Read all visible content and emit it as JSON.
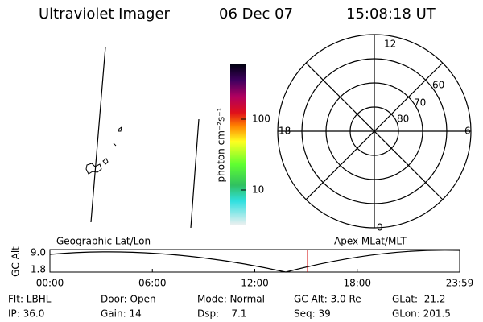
{
  "header": {
    "instrument": "Ultraviolet Imager",
    "date": "06 Dec 07",
    "time": "15:08:18 UT"
  },
  "colorbar": {
    "label": "photon cm⁻²s⁻¹",
    "ticks": [
      "100",
      "10"
    ]
  },
  "polar": {
    "mlt_labels": [
      "12",
      "6",
      "0",
      "18"
    ],
    "lat_labels": [
      "60",
      "70",
      "80"
    ]
  },
  "timeline": {
    "left_title": "Geographic Lat/Lon",
    "right_title": "Apex MLat/MLT",
    "axis_label": "GC Alt",
    "y_labels": [
      "9.0",
      "1.8"
    ],
    "time_labels": [
      "00:00",
      "06:00",
      "12:00",
      "18:00",
      "23:59"
    ]
  },
  "status": {
    "rows": [
      [
        "Flt: LBHL",
        "Door: Open",
        "Mode: Normal",
        "GC Alt: 3.0 Re",
        "GLat:  21.2"
      ],
      [
        "IP: 36.0",
        "Gain: 14",
        "Dsp:    7.1",
        "Seq: 39",
        "GLon: 201.5"
      ]
    ]
  }
}
